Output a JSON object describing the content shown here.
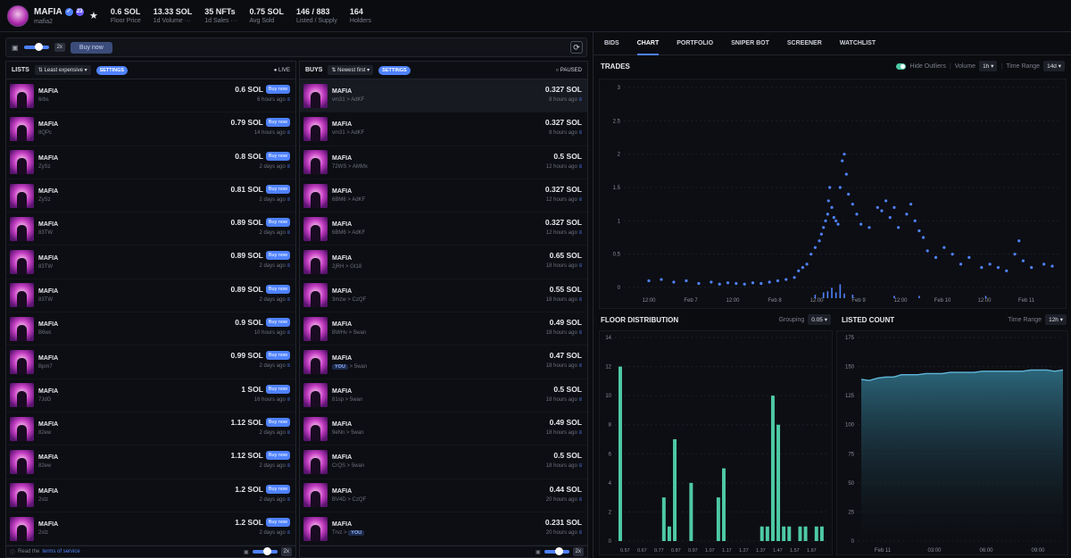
{
  "header": {
    "collection_name": "MAFIA",
    "collection_badge": "23",
    "collection_handle": "mafia2",
    "stats": [
      {
        "value": "0.6 SOL",
        "label": "Floor Price"
      },
      {
        "value": "13.33 SOL",
        "label": "1d Volume ···"
      },
      {
        "value": "35 NFTs",
        "label": "1d Sales ···"
      },
      {
        "value": "0.75 SOL",
        "label": "Avg Sold"
      },
      {
        "value": "146 / 883",
        "label": "Listed / Supply"
      },
      {
        "value": "164",
        "label": "Holders"
      }
    ]
  },
  "toolbar": {
    "size_chip": "2x",
    "buy_label": "Buy now"
  },
  "lists": {
    "title": "LISTS",
    "sort": "⇅ Least expensive ▾",
    "settings": "SETTINGS",
    "status": "● LIVE",
    "buy_label": "Buy now",
    "items": [
      {
        "name": "MAFIA",
        "id": "6rbs",
        "price": "0.6 SOL",
        "time": "6 hours ago"
      },
      {
        "name": "MAFIA",
        "id": "8QPc",
        "price": "0.79 SOL",
        "time": "14 hours ago"
      },
      {
        "name": "MAFIA",
        "id": "ZySz",
        "price": "0.8 SOL",
        "time": "2 days ago"
      },
      {
        "name": "MAFIA",
        "id": "ZySz",
        "price": "0.81 SOL",
        "time": "2 days ago"
      },
      {
        "name": "MAFIA",
        "id": "83TW",
        "price": "0.89 SOL",
        "time": "2 days ago"
      },
      {
        "name": "MAFIA",
        "id": "83TW",
        "price": "0.89 SOL",
        "time": "2 days ago"
      },
      {
        "name": "MAFIA",
        "id": "83TW",
        "price": "0.89 SOL",
        "time": "2 days ago"
      },
      {
        "name": "MAFIA",
        "id": "B6wc",
        "price": "0.9 SOL",
        "time": "10 hours ago"
      },
      {
        "name": "MAFIA",
        "id": "Bpm7",
        "price": "0.99 SOL",
        "time": "2 days ago"
      },
      {
        "name": "MAFIA",
        "id": "7JdG",
        "price": "1 SOL",
        "time": "16 hours ago"
      },
      {
        "name": "MAFIA",
        "id": "82ew",
        "price": "1.12 SOL",
        "time": "2 days ago"
      },
      {
        "name": "MAFIA",
        "id": "82ew",
        "price": "1.12 SOL",
        "time": "2 days ago"
      },
      {
        "name": "MAFIA",
        "id": "2stz",
        "price": "1.2 SOL",
        "time": "2 days ago"
      },
      {
        "name": "MAFIA",
        "id": "2stz",
        "price": "1.2 SOL",
        "time": "2 days ago"
      }
    ],
    "footer_text": "Read the",
    "footer_link": "terms of service",
    "footer_chip": "2x"
  },
  "buys": {
    "title": "BUYS",
    "sort": "⇅ Newest first ▾",
    "settings": "SETTINGS",
    "status": "○ PAUSED",
    "items": [
      {
        "name": "MAFIA",
        "from": "vm31",
        "to": "AdKF",
        "price": "0.327 SOL",
        "time": "8 hours ago"
      },
      {
        "name": "MAFIA",
        "from": "vm31",
        "to": "AdKF",
        "price": "0.327 SOL",
        "time": "8 hours ago"
      },
      {
        "name": "MAFIA",
        "from": "72WS",
        "to": "AMMx",
        "price": "0.5 SOL",
        "time": "12 hours ago"
      },
      {
        "name": "MAFIA",
        "from": "6BM6",
        "to": "AdKF",
        "price": "0.327 SOL",
        "time": "12 hours ago"
      },
      {
        "name": "MAFIA",
        "from": "6BM6",
        "to": "AdKF",
        "price": "0.327 SOL",
        "time": "12 hours ago"
      },
      {
        "name": "MAFIA",
        "from": "2jRH",
        "to": "Gt18",
        "price": "0.65 SOL",
        "time": "18 hours ago"
      },
      {
        "name": "MAFIA",
        "from": "3mzw",
        "to": "CzQF",
        "price": "0.55 SOL",
        "time": "18 hours ago"
      },
      {
        "name": "MAFIA",
        "from": "BWHv",
        "to": "5wan",
        "price": "0.49 SOL",
        "time": "18 hours ago"
      },
      {
        "name": "MAFIA",
        "from": "YOU",
        "to": "5wan",
        "price": "0.47 SOL",
        "time": "18 hours ago"
      },
      {
        "name": "MAFIA",
        "from": "81sp",
        "to": "5wan",
        "price": "0.5 SOL",
        "time": "18 hours ago"
      },
      {
        "name": "MAFIA",
        "from": "9eNn",
        "to": "5wan",
        "price": "0.49 SOL",
        "time": "18 hours ago"
      },
      {
        "name": "MAFIA",
        "from": "CrQS",
        "to": "5wan",
        "price": "0.5 SOL",
        "time": "18 hours ago"
      },
      {
        "name": "MAFIA",
        "from": "BV4D",
        "to": "CzQF",
        "price": "0.44 SOL",
        "time": "20 hours ago"
      },
      {
        "name": "MAFIA",
        "from": "Trvz",
        "to": "YOU",
        "price": "0.231 SOL",
        "time": "20 hours ago"
      }
    ],
    "footer_chip": "2x"
  },
  "tabs": [
    "BIDS",
    "CHART",
    "PORTFOLIO",
    "SNIPER BOT",
    "SCREENER",
    "WATCHLIST"
  ],
  "active_tab": "CHART",
  "trades": {
    "title": "TRADES",
    "hide_outliers": "Hide Outliers",
    "volume_label": "Volume",
    "volume_value": "1h ▾",
    "time_range_label": "Time Range",
    "time_range_value": "14d ▾"
  },
  "floor_dist": {
    "title": "FLOOR DISTRIBUTION",
    "grouping_label": "Grouping",
    "grouping_value": "0.05 ▾"
  },
  "listed_count": {
    "title": "LISTED COUNT",
    "time_range_label": "Time Range",
    "time_range_value": "12h ▾"
  },
  "chart_data": [
    {
      "type": "scatter",
      "title": "TRADES",
      "x_ticks": [
        "12:00",
        "Feb 7",
        "12:00",
        "Feb 8",
        "12:00",
        "Feb 9",
        "12:00",
        "Feb 10",
        "12:00",
        "Feb 11"
      ],
      "y_ticks": [
        "0",
        "0.5",
        "1",
        "1.5",
        "2",
        "2.5",
        "3"
      ],
      "ylim": [
        0,
        3
      ],
      "xlim": [
        0,
        10
      ],
      "color": "#4f82ff",
      "points": [
        [
          0.3,
          0.1
        ],
        [
          0.6,
          0.12
        ],
        [
          0.9,
          0.08
        ],
        [
          1.2,
          0.1
        ],
        [
          1.5,
          0.06
        ],
        [
          1.8,
          0.08
        ],
        [
          2.0,
          0.05
        ],
        [
          2.2,
          0.07
        ],
        [
          2.4,
          0.06
        ],
        [
          2.6,
          0.05
        ],
        [
          2.8,
          0.07
        ],
        [
          3.0,
          0.06
        ],
        [
          3.2,
          0.08
        ],
        [
          3.4,
          0.1
        ],
        [
          3.6,
          0.12
        ],
        [
          3.8,
          0.15
        ],
        [
          3.9,
          0.25
        ],
        [
          4.0,
          0.3
        ],
        [
          4.1,
          0.35
        ],
        [
          4.2,
          0.5
        ],
        [
          4.3,
          0.6
        ],
        [
          4.4,
          0.7
        ],
        [
          4.45,
          0.8
        ],
        [
          4.5,
          0.9
        ],
        [
          4.55,
          1.0
        ],
        [
          4.6,
          1.1
        ],
        [
          4.62,
          1.3
        ],
        [
          4.65,
          1.5
        ],
        [
          4.7,
          1.2
        ],
        [
          4.75,
          1.05
        ],
        [
          4.8,
          1.0
        ],
        [
          4.85,
          0.95
        ],
        [
          4.9,
          1.5
        ],
        [
          4.95,
          1.9
        ],
        [
          5.0,
          2.0
        ],
        [
          5.05,
          1.7
        ],
        [
          5.1,
          1.4
        ],
        [
          5.2,
          1.25
        ],
        [
          5.3,
          1.1
        ],
        [
          5.4,
          0.95
        ],
        [
          5.6,
          0.9
        ],
        [
          5.8,
          1.2
        ],
        [
          5.9,
          1.15
        ],
        [
          6.0,
          1.3
        ],
        [
          6.1,
          1.05
        ],
        [
          6.2,
          1.2
        ],
        [
          6.3,
          0.9
        ],
        [
          6.5,
          1.1
        ],
        [
          6.6,
          1.25
        ],
        [
          6.7,
          1.0
        ],
        [
          6.8,
          0.85
        ],
        [
          6.9,
          0.75
        ],
        [
          7.0,
          0.55
        ],
        [
          7.2,
          0.45
        ],
        [
          7.4,
          0.6
        ],
        [
          7.6,
          0.5
        ],
        [
          7.8,
          0.35
        ],
        [
          8.0,
          0.45
        ],
        [
          8.3,
          0.3
        ],
        [
          8.5,
          0.35
        ],
        [
          8.7,
          0.3
        ],
        [
          8.9,
          0.25
        ],
        [
          9.1,
          0.5
        ],
        [
          9.2,
          0.7
        ],
        [
          9.3,
          0.4
        ],
        [
          9.5,
          0.3
        ],
        [
          9.8,
          0.35
        ],
        [
          10.0,
          0.32
        ]
      ],
      "volume": [
        [
          4.3,
          3
        ],
        [
          4.5,
          5
        ],
        [
          4.6,
          6
        ],
        [
          4.7,
          9
        ],
        [
          4.8,
          5
        ],
        [
          4.9,
          12
        ],
        [
          5.0,
          4
        ],
        [
          5.2,
          3
        ],
        [
          6.2,
          2
        ],
        [
          6.8,
          2
        ],
        [
          8.4,
          2
        ]
      ]
    },
    {
      "type": "bar",
      "title": "FLOOR DISTRIBUTION",
      "x_ticks": [
        "0.57",
        "0.67",
        "0.77",
        "0.87",
        "0.97",
        "1.07",
        "1.17",
        "1.27",
        "1.37",
        "1.47",
        "1.57",
        "1.67"
      ],
      "y_ticks": [
        "0",
        "2",
        "4",
        "6",
        "8",
        "10",
        "12",
        "14"
      ],
      "ylim": [
        0,
        14
      ],
      "color": "#4ec9a5",
      "values": [
        12,
        0,
        0,
        0,
        0,
        0,
        0,
        0,
        3,
        1,
        7,
        0,
        0,
        4,
        0,
        0,
        0,
        0,
        3,
        5,
        0,
        0,
        0,
        0,
        0,
        0,
        1,
        1,
        10,
        8,
        1,
        1,
        0,
        1,
        1,
        0,
        1,
        1
      ]
    },
    {
      "type": "area",
      "title": "LISTED COUNT",
      "x_ticks": [
        "Feb 11",
        "03:00",
        "06:00",
        "09:00"
      ],
      "y_ticks": [
        "0",
        "25",
        "50",
        "75",
        "100",
        "125",
        "150",
        "175"
      ],
      "ylim": [
        0,
        175
      ],
      "color": "#5fb6d9",
      "values": [
        139,
        138,
        140,
        141,
        141,
        143,
        143,
        143,
        144,
        144,
        144,
        145,
        145,
        145,
        145,
        146,
        146,
        146,
        146,
        146,
        146,
        147,
        147,
        147,
        146,
        147
      ]
    }
  ]
}
